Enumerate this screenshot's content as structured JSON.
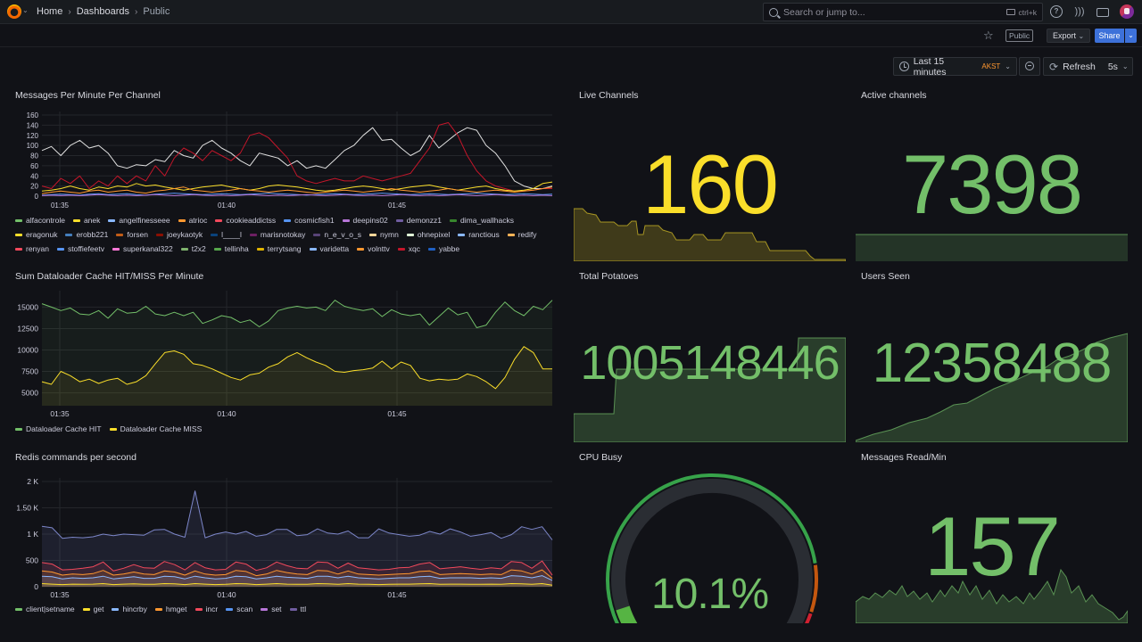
{
  "nav": {
    "breadcrumb": {
      "home": "Home",
      "sep": "›",
      "dashboards": "Dashboards",
      "current": "Public"
    },
    "search_placeholder": "Search or jump to...",
    "search_shortcut": "ctrl+k"
  },
  "toolbar": {
    "public_badge": "Public",
    "export_label": "Export",
    "share_label": "Share"
  },
  "time": {
    "range_label": "Last 15 minutes",
    "timezone": "AKST",
    "refresh_label": "Refresh",
    "interval": "5s"
  },
  "colors": {
    "yellow": "#fade2a",
    "green": "#73bf69",
    "red": "#f2495c",
    "orange": "#ff9830",
    "blue": "#5794f2",
    "purple": "#b877d9"
  },
  "panels": {
    "messages_per_minute": {
      "title": "Messages Per Minute Per Channel",
      "legend": [
        {
          "name": "alfacontrole",
          "color": "#73bf69"
        },
        {
          "name": "anek",
          "color": "#fade2a"
        },
        {
          "name": "angelfinesseee",
          "color": "#8ab8ff"
        },
        {
          "name": "atrioc",
          "color": "#ff9830"
        },
        {
          "name": "cookieaddictss",
          "color": "#f2495c"
        },
        {
          "name": "cosmicfish1",
          "color": "#5794f2"
        },
        {
          "name": "deepins02",
          "color": "#b877d9"
        },
        {
          "name": "demonzz1",
          "color": "#705da0"
        },
        {
          "name": "dima_wallhacks",
          "color": "#37872d"
        },
        {
          "name": "eragonuk",
          "color": "#fade2a"
        },
        {
          "name": "erobb221",
          "color": "#447ebc"
        },
        {
          "name": "forsen",
          "color": "#c15c17"
        },
        {
          "name": "joeykaotyk",
          "color": "#890f02"
        },
        {
          "name": "l____l",
          "color": "#0a437c"
        },
        {
          "name": "marisnotokay",
          "color": "#6d1f62"
        },
        {
          "name": "n_e_v_o_s",
          "color": "#584477"
        },
        {
          "name": "nymn",
          "color": "#f4d598"
        },
        {
          "name": "ohnepixel",
          "color": "#e0f9d7"
        },
        {
          "name": "ranctious",
          "color": "#8ab8ff"
        },
        {
          "name": "redify",
          "color": "#ffb357"
        },
        {
          "name": "renyan",
          "color": "#f2495c"
        },
        {
          "name": "stoffiefeetv",
          "color": "#5794f2"
        },
        {
          "name": "superkanal322",
          "color": "#ff78d7"
        },
        {
          "name": "t2x2",
          "color": "#7eb26d"
        },
        {
          "name": "tellinha",
          "color": "#56a64b"
        },
        {
          "name": "terrytsang",
          "color": "#e0b400"
        },
        {
          "name": "varidetta",
          "color": "#8ab8ff"
        },
        {
          "name": "volnttv",
          "color": "#ff9830"
        },
        {
          "name": "xqc",
          "color": "#c4162a"
        },
        {
          "name": "yabbe",
          "color": "#1f60c4"
        }
      ]
    },
    "cache_hit_miss": {
      "title": "Sum Dataloader Cache HIT/MISS Per Minute",
      "legend": [
        {
          "name": "Dataloader Cache HIT",
          "color": "#73bf69"
        },
        {
          "name": "Dataloader Cache MISS",
          "color": "#fade2a"
        }
      ]
    },
    "redis": {
      "title": "Redis commands per second",
      "legend": [
        {
          "name": "client|setname",
          "color": "#73bf69"
        },
        {
          "name": "get",
          "color": "#fade2a"
        },
        {
          "name": "hincrby",
          "color": "#8ab8ff"
        },
        {
          "name": "hmget",
          "color": "#ff9830"
        },
        {
          "name": "incr",
          "color": "#f2495c"
        },
        {
          "name": "scan",
          "color": "#5794f2"
        },
        {
          "name": "set",
          "color": "#b877d9"
        },
        {
          "name": "ttl",
          "color": "#705da0"
        }
      ]
    },
    "live_channels": {
      "title": "Live Channels",
      "value": "160"
    },
    "active_channels": {
      "title": "Active channels",
      "value": "7398"
    },
    "total_potatoes": {
      "title": "Total Potatoes",
      "value": "1005148446"
    },
    "users_seen": {
      "title": "Users Seen",
      "value": "12358488"
    },
    "cpu_busy": {
      "title": "CPU Busy",
      "value": "10.1%",
      "percent": 10.1
    },
    "messages_read": {
      "title": "Messages Read/Min",
      "value": "157"
    }
  },
  "chart_data": [
    {
      "type": "line",
      "title": "Messages Per Minute Per Channel",
      "x_ticks": [
        "01:35",
        "01:40",
        "01:45"
      ],
      "y_ticks": [
        "0",
        "20",
        "40",
        "60",
        "80",
        "100",
        "120",
        "140",
        "160"
      ],
      "ylim": [
        0,
        160
      ],
      "series": [
        {
          "name": "alfacontrole",
          "color": "#e0e0e0",
          "values": [
            90,
            98,
            80,
            100,
            110,
            95,
            100,
            85,
            60,
            55,
            62,
            60,
            72,
            68,
            90,
            80,
            75,
            100,
            110,
            95,
            85,
            70,
            60,
            85,
            80,
            75,
            60,
            70,
            55,
            60,
            55,
            72,
            90,
            100,
            120,
            135,
            110,
            112,
            95,
            80,
            90,
            120,
            95,
            110,
            125,
            135,
            130,
            100,
            85,
            60,
            30,
            20,
            15,
            15,
            20
          ]
        },
        {
          "name": "atrioc",
          "color": "#c4162a",
          "values": [
            20,
            15,
            35,
            25,
            40,
            15,
            30,
            20,
            40,
            25,
            40,
            30,
            60,
            40,
            75,
            95,
            85,
            70,
            90,
            80,
            70,
            85,
            120,
            125,
            115,
            95,
            75,
            40,
            30,
            25,
            30,
            35,
            30,
            30,
            40,
            35,
            30,
            35,
            40,
            45,
            70,
            95,
            140,
            145,
            120,
            80,
            50,
            30,
            20,
            15,
            10,
            10,
            12,
            15,
            15
          ]
        },
        {
          "name": "renyan",
          "color": "#fade2a",
          "values": [
            10,
            12,
            15,
            20,
            15,
            12,
            18,
            15,
            20,
            18,
            25,
            20,
            22,
            18,
            15,
            12,
            15,
            18,
            20,
            22,
            18,
            15,
            12,
            15,
            20,
            22,
            20,
            18,
            15,
            12,
            10,
            12,
            15,
            18,
            20,
            18,
            15,
            12,
            15,
            18,
            20,
            22,
            18,
            15,
            12,
            15,
            18,
            20,
            15,
            12,
            10,
            12,
            15,
            25,
            28
          ]
        },
        {
          "name": "forsen",
          "color": "#ff9830",
          "values": [
            5,
            8,
            10,
            8,
            6,
            10,
            12,
            8,
            10,
            12,
            8,
            6,
            10,
            12,
            15,
            18,
            12,
            10,
            8,
            10,
            12,
            15,
            12,
            10,
            8,
            10,
            12,
            10,
            8,
            6,
            8,
            10,
            12,
            10,
            8,
            10,
            12,
            15,
            12,
            10,
            8,
            10,
            12,
            15,
            12,
            10,
            8,
            10,
            12,
            10,
            8,
            10,
            12,
            15,
            18
          ]
        },
        {
          "name": "cosmicfish1",
          "color": "#5794f2",
          "values": [
            2,
            3,
            4,
            3,
            2,
            4,
            5,
            3,
            4,
            5,
            3,
            2,
            4,
            5,
            6,
            5,
            4,
            3,
            4,
            5,
            4,
            3,
            4,
            5,
            6,
            5,
            4,
            3,
            2,
            3,
            4,
            5,
            4,
            3,
            4,
            5,
            6,
            5,
            4,
            3,
            4,
            5,
            4,
            3,
            4,
            5,
            6,
            5,
            4,
            3,
            4,
            5,
            4,
            3,
            4
          ]
        },
        {
          "name": "deepins02",
          "color": "#b877d9",
          "values": [
            1,
            2,
            1,
            2,
            1,
            2,
            3,
            2,
            1,
            2,
            1,
            2,
            3,
            2,
            1,
            2,
            3,
            2,
            1,
            2,
            1,
            2,
            3,
            2,
            1,
            2,
            1,
            2,
            3,
            2,
            1,
            2,
            3,
            2,
            1,
            2,
            1,
            2,
            3,
            2,
            1,
            2,
            1,
            2,
            3,
            2,
            1,
            2,
            3,
            2,
            1,
            2,
            1,
            2,
            1
          ]
        }
      ]
    },
    {
      "type": "line",
      "title": "Sum Dataloader Cache HIT/MISS Per Minute",
      "x_ticks": [
        "01:35",
        "01:40",
        "01:45"
      ],
      "y_ticks": [
        "5000",
        "7500",
        "10000",
        "12500",
        "15000"
      ],
      "ylim": [
        3500,
        16500
      ],
      "series": [
        {
          "name": "Dataloader Cache HIT",
          "color": "#73bf69",
          "values": [
            15400,
            15000,
            14600,
            14900,
            14200,
            14100,
            14600,
            13700,
            14800,
            14300,
            14400,
            15100,
            14200,
            14000,
            14400,
            14000,
            14400,
            13100,
            13500,
            14000,
            13800,
            13200,
            13500,
            12700,
            13400,
            14600,
            14900,
            15100,
            14900,
            15000,
            14600,
            15800,
            15100,
            14800,
            14600,
            14800,
            13900,
            14700,
            14200,
            14000,
            14200,
            12900,
            13900,
            14900,
            14100,
            14400,
            12600,
            12900,
            14400,
            15600,
            14600,
            14000,
            15100,
            14700,
            15800
          ]
        },
        {
          "name": "Dataloader Cache MISS",
          "color": "#fade2a",
          "values": [
            6300,
            6000,
            7500,
            7000,
            6300,
            6600,
            6100,
            6500,
            6700,
            6000,
            6300,
            7000,
            8400,
            9700,
            9900,
            9500,
            8400,
            8200,
            7800,
            7300,
            6800,
            6500,
            7100,
            7300,
            8000,
            8400,
            9200,
            9700,
            9100,
            8600,
            8200,
            7500,
            7400,
            7600,
            7700,
            7900,
            8700,
            7800,
            8600,
            8200,
            6700,
            6400,
            6600,
            6500,
            6600,
            7200,
            6900,
            6300,
            5500,
            6800,
            8900,
            10400,
            9700,
            7800,
            7800
          ]
        }
      ]
    },
    {
      "type": "area",
      "title": "Redis commands per second",
      "x_ticks": [
        "01:35",
        "01:40",
        "01:45"
      ],
      "y_ticks": [
        "0",
        "500",
        "1 K",
        "1.50 K",
        "2 K"
      ],
      "ylim": [
        0,
        2000
      ],
      "series": [
        {
          "name": "ttl",
          "color": "#7c86c9",
          "values": [
            1150,
            1120,
            920,
            940,
            930,
            950,
            1000,
            970,
            1000,
            990,
            980,
            1080,
            1090,
            1000,
            940,
            1820,
            930,
            1000,
            1040,
            1000,
            1050,
            960,
            990,
            1090,
            1090,
            970,
            990,
            1100,
            1020,
            1000,
            1060,
            930,
            930,
            1100,
            1020,
            990,
            960,
            980,
            1050,
            1000,
            1100,
            1040,
            960,
            990,
            1030,
            920,
            990,
            1140,
            1090,
            1140,
            890
          ]
        },
        {
          "name": "hmget",
          "color": "#f2495c",
          "values": [
            460,
            430,
            320,
            330,
            350,
            380,
            470,
            300,
            350,
            420,
            360,
            350,
            480,
            420,
            320,
            460,
            360,
            320,
            330,
            470,
            430,
            310,
            360,
            470,
            400,
            350,
            340,
            470,
            460,
            350,
            450,
            360,
            340,
            320,
            330,
            360,
            370,
            430,
            460,
            340,
            360,
            380,
            350,
            330,
            360,
            340,
            480,
            460,
            350,
            490,
            220
          ]
        },
        {
          "name": "incr",
          "color": "#ff9830",
          "values": [
            300,
            280,
            220,
            240,
            230,
            250,
            310,
            220,
            240,
            280,
            240,
            230,
            300,
            280,
            220,
            300,
            240,
            220,
            230,
            310,
            290,
            210,
            240,
            310,
            270,
            240,
            230,
            310,
            300,
            240,
            300,
            240,
            230,
            220,
            230,
            240,
            250,
            290,
            300,
            230,
            240,
            250,
            240,
            230,
            240,
            230,
            320,
            300,
            240,
            320,
            160
          ]
        },
        {
          "name": "hincrby",
          "color": "#8ab8ff",
          "values": [
            200,
            190,
            150,
            170,
            160,
            170,
            200,
            150,
            170,
            190,
            160,
            160,
            200,
            190,
            150,
            200,
            170,
            150,
            160,
            200,
            190,
            150,
            170,
            200,
            180,
            170,
            160,
            200,
            200,
            170,
            200,
            170,
            160,
            150,
            160,
            170,
            170,
            190,
            200,
            160,
            170,
            170,
            170,
            160,
            170,
            160,
            210,
            200,
            170,
            210,
            120
          ]
        },
        {
          "name": "get",
          "color": "#fade2a",
          "values": [
            60,
            50,
            40,
            50,
            45,
            50,
            60,
            40,
            50,
            55,
            45,
            45,
            60,
            55,
            40,
            60,
            50,
            40,
            45,
            60,
            55,
            40,
            50,
            60,
            50,
            45,
            45,
            60,
            55,
            45,
            60,
            50,
            45,
            40,
            45,
            50,
            50,
            55,
            60,
            45,
            50,
            50,
            45,
            45,
            50,
            45,
            60,
            55,
            45,
            60,
            30
          ]
        }
      ]
    }
  ]
}
